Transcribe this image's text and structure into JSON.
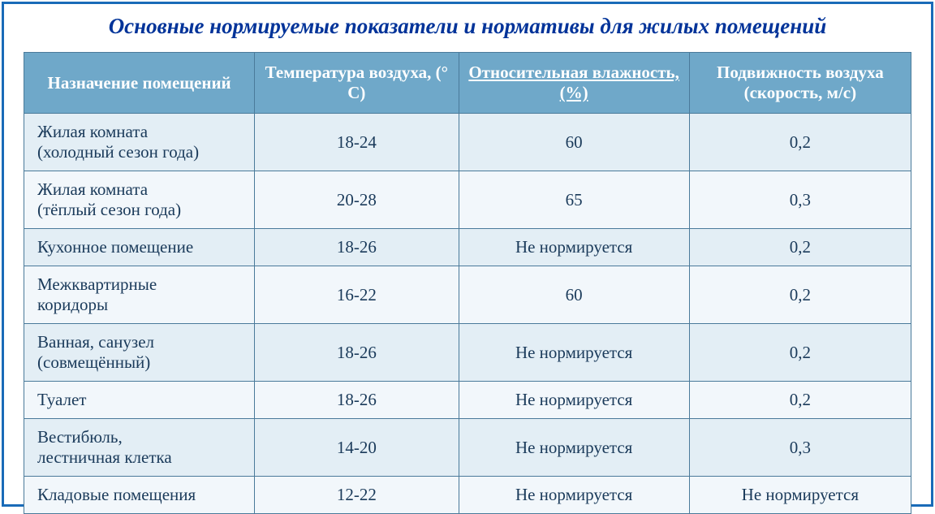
{
  "title": {
    "text": "Основные нормируемые показатели и нормативы для жилых помещений",
    "color": "#003399",
    "fontsize": 27,
    "italic": true,
    "bold": true
  },
  "table": {
    "header_bg": "#6fa8c9",
    "header_fg": "#ffffff",
    "border_color": "#4a7a9a",
    "row_odd_bg": "#e3eef5",
    "row_even_bg": "#f2f7fb",
    "cell_fg": "#1a3a5a",
    "header_fontsize": 21,
    "cell_fontsize": 21,
    "col_widths": [
      "26%",
      "23%",
      "26%",
      "25%"
    ],
    "columns": [
      {
        "label": "Назначение помещений",
        "underline": false
      },
      {
        "label": "Температура воздуха, (° С)",
        "underline": false
      },
      {
        "label": "Относительная влажность, (%)",
        "underline": true
      },
      {
        "label": "Подвижность воздуха (скорость, м/с)",
        "underline": false
      }
    ],
    "rows": [
      {
        "room": "Жилая комната\n(холодный сезон года)",
        "temp": "18-24",
        "humidity": "60",
        "speed": "0,2"
      },
      {
        "room": "Жилая комната\n(тёплый сезон года)",
        "temp": "20-28",
        "humidity": "65",
        "speed": "0,3"
      },
      {
        "room": "Кухонное помещение",
        "temp": "18-26",
        "humidity": "Не нормируется",
        "speed": "0,2"
      },
      {
        "room": "Межквартирные\nкоридоры",
        "temp": "16-22",
        "humidity": "60",
        "speed": "0,2"
      },
      {
        "room": "Ванная, санузел\n(совмещённый)",
        "temp": "18-26",
        "humidity": "Не нормируется",
        "speed": "0,2"
      },
      {
        "room": "Туалет",
        "temp": "18-26",
        "humidity": "Не нормируется",
        "speed": "0,2"
      },
      {
        "room": "Вестибюль,\nлестничная клетка",
        "temp": "14-20",
        "humidity": "Не нормируется",
        "speed": "0,3"
      },
      {
        "room": "Кладовые помещения",
        "temp": "12-22",
        "humidity": "Не нормируется",
        "speed": "Не нормируется"
      }
    ]
  }
}
